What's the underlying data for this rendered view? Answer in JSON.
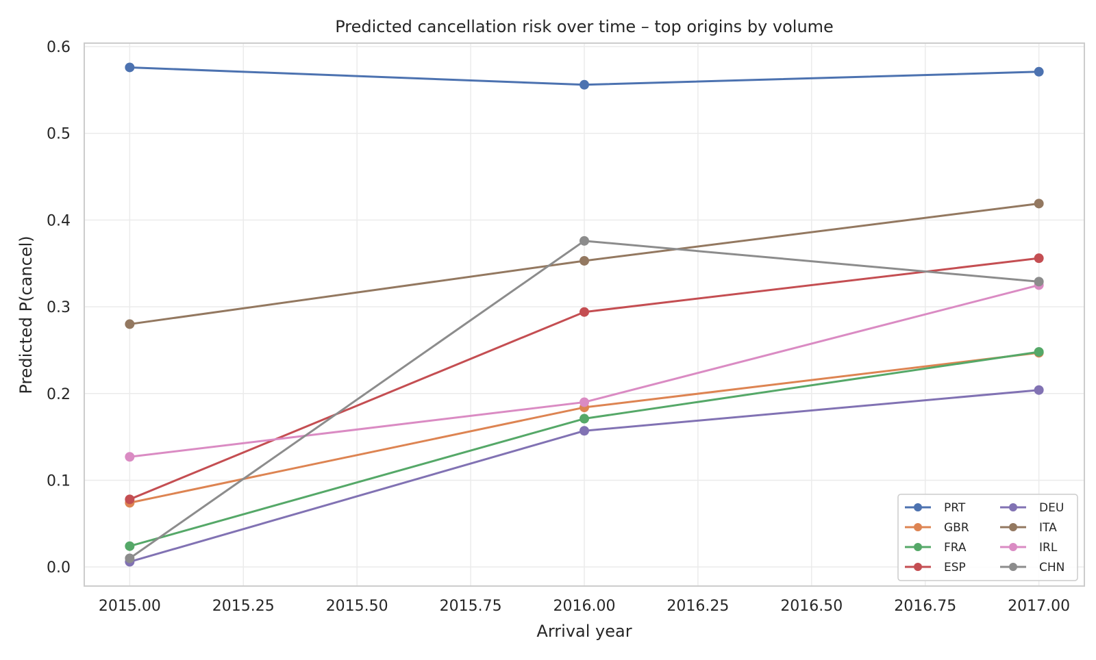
{
  "chart_data": {
    "type": "line",
    "title": "Predicted cancellation risk over time – top origins by volume",
    "xlabel": "Arrival year",
    "ylabel": "Predicted P(cancel)",
    "x": [
      2015.0,
      2016.0,
      2017.0
    ],
    "xlim": [
      2014.9,
      2017.1
    ],
    "ylim": [
      -0.022,
      0.604
    ],
    "xticks": [
      "2015.00",
      "2015.25",
      "2015.50",
      "2015.75",
      "2016.00",
      "2016.25",
      "2016.50",
      "2016.75",
      "2017.00"
    ],
    "xtick_values": [
      2015.0,
      2015.25,
      2015.5,
      2015.75,
      2016.0,
      2016.25,
      2016.5,
      2016.75,
      2017.0
    ],
    "yticks": [
      "0.0",
      "0.1",
      "0.2",
      "0.3",
      "0.4",
      "0.5",
      "0.6"
    ],
    "ytick_values": [
      0.0,
      0.1,
      0.2,
      0.3,
      0.4,
      0.5,
      0.6
    ],
    "grid": true,
    "legend_position": "lower-right",
    "legend_columns": 2,
    "series": [
      {
        "name": "PRT",
        "color": "#4c72b0",
        "values": [
          0.576,
          0.556,
          0.571
        ]
      },
      {
        "name": "GBR",
        "color": "#dd8452",
        "values": [
          0.074,
          0.184,
          0.247
        ]
      },
      {
        "name": "FRA",
        "color": "#55a868",
        "values": [
          0.024,
          0.171,
          0.248
        ]
      },
      {
        "name": "ESP",
        "color": "#c44e52",
        "values": [
          0.078,
          0.294,
          0.356
        ]
      },
      {
        "name": "DEU",
        "color": "#8172b3",
        "values": [
          0.006,
          0.157,
          0.204
        ]
      },
      {
        "name": "ITA",
        "color": "#937860",
        "values": [
          0.28,
          0.353,
          0.419
        ]
      },
      {
        "name": "IRL",
        "color": "#da8bc3",
        "values": [
          0.127,
          0.19,
          0.325
        ]
      },
      {
        "name": "CHN",
        "color": "#8c8c8c",
        "values": [
          0.01,
          0.376,
          0.329
        ]
      }
    ]
  }
}
